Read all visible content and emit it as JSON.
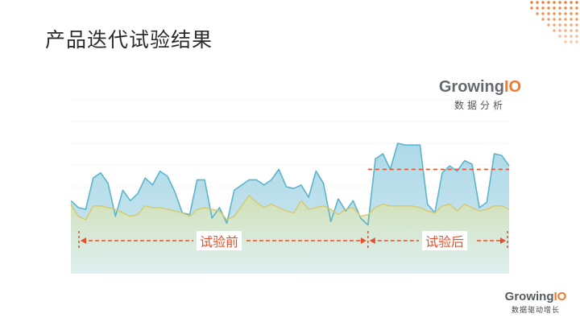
{
  "slide": {
    "title": "产品迭代试验结果"
  },
  "logo_top": {
    "word_main": "Growing",
    "word_accent": "IO",
    "tagline": "数据分析"
  },
  "logo_bottom": {
    "word_main": "Growing",
    "word_accent": "IO",
    "tagline": "数据驱动增长"
  },
  "colors": {
    "title": "#2b2b2b",
    "upper_line": "#5cb4cc",
    "upper_fill": "#a9d7e6",
    "lower_line": "#d8c86a",
    "lower_fill": "#d2e0b0",
    "annotation": "#e8502d",
    "dot_accent": "#f07a2d"
  },
  "chart_data": {
    "type": "area",
    "title": "",
    "xlabel": "",
    "ylabel": "",
    "grid": true,
    "axis_labels_shown": false,
    "series": [
      {
        "values": [
          0.42,
          0.38,
          0.37,
          0.55,
          0.58,
          0.52,
          0.33,
          0.48,
          0.42,
          0.46,
          0.55,
          0.51,
          0.59,
          0.56,
          0.47,
          0.35,
          0.34,
          0.54,
          0.54,
          0.32,
          0.38,
          0.29,
          0.48,
          0.51,
          0.54,
          0.54,
          0.51,
          0.54,
          0.6,
          0.5,
          0.49,
          0.51,
          0.44,
          0.59,
          0.52,
          0.3,
          0.43,
          0.36,
          0.42,
          0.32,
          0.28,
          0.66,
          0.69,
          0.6,
          0.75,
          0.74,
          0.74,
          0.74,
          0.4,
          0.35,
          0.58,
          0.62,
          0.59,
          0.65,
          0.63,
          0.38,
          0.41,
          0.69,
          0.68,
          0.62
        ]
      },
      {
        "values": [
          0.4,
          0.33,
          0.31,
          0.39,
          0.39,
          0.38,
          0.37,
          0.35,
          0.33,
          0.34,
          0.39,
          0.38,
          0.38,
          0.37,
          0.36,
          0.35,
          0.33,
          0.37,
          0.38,
          0.37,
          0.36,
          0.31,
          0.33,
          0.39,
          0.45,
          0.41,
          0.38,
          0.4,
          0.38,
          0.36,
          0.35,
          0.42,
          0.37,
          0.38,
          0.39,
          0.37,
          0.34,
          0.37,
          0.38,
          0.33,
          0.34,
          0.38,
          0.4,
          0.39,
          0.39,
          0.39,
          0.39,
          0.38,
          0.36,
          0.35,
          0.39,
          0.4,
          0.36,
          0.4,
          0.38,
          0.36,
          0.37,
          0.39,
          0.39,
          0.37
        ]
      }
    ],
    "split_index": 40,
    "reference_level": 0.6,
    "annotations": [
      {
        "label": "试验前",
        "from_index": 0,
        "to_index": 40
      },
      {
        "label": "试验后",
        "from_index": 40,
        "to_index": 59
      }
    ]
  }
}
